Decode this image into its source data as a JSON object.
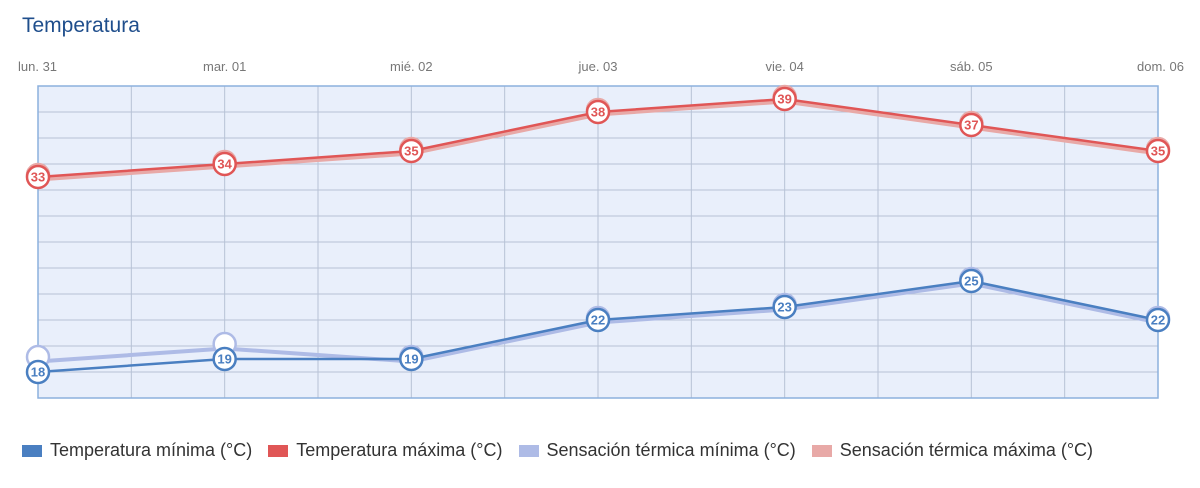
{
  "title": "Temperatura",
  "chart_data": {
    "type": "line",
    "categories": [
      "lun. 31",
      "mar. 01",
      "mié. 02",
      "jue. 03",
      "vie. 04",
      "sáb. 05",
      "dom. 06"
    ],
    "ylim": [
      16,
      40
    ],
    "grid": true,
    "legend_position": "bottom",
    "series": [
      {
        "name": "Temperatura mínima (°C)",
        "color": "#4a7fc1",
        "values": [
          18,
          19,
          19,
          22,
          23,
          25,
          22
        ],
        "labels_shown": true
      },
      {
        "name": "Temperatura máxima (°C)",
        "color": "#e05656",
        "values": [
          33,
          34,
          35,
          38,
          39,
          37,
          35
        ],
        "labels_shown": true
      },
      {
        "name": "Sensación térmica mínima (°C)",
        "color": "#aebbe6",
        "values": [
          19,
          20,
          19,
          22,
          23,
          25,
          22
        ],
        "labels_shown": false
      },
      {
        "name": "Sensación térmica máxima (°C)",
        "color": "#e8a9a7",
        "values": [
          33,
          34,
          35,
          38,
          39,
          37,
          35
        ],
        "labels_shown": false
      }
    ]
  }
}
